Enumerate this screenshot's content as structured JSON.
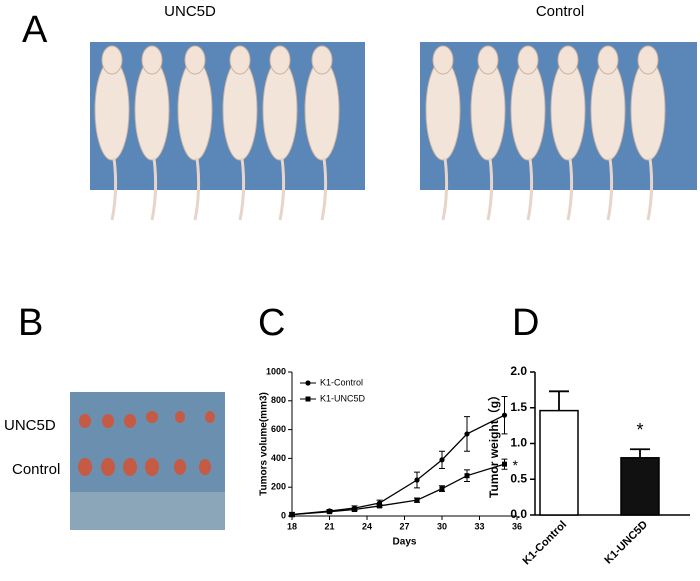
{
  "panels": {
    "a": "A",
    "b": "B",
    "c": "C",
    "d": "D"
  },
  "photo_labels": {
    "a_left": "UNC5D",
    "a_right": "Control",
    "b_top": "UNC5D",
    "b_bottom": "Control"
  },
  "chart_data": [
    {
      "type": "line",
      "x_label": "Days",
      "y_label": "Tumors volume(mm3)",
      "annotation": "*",
      "xlim": [
        18,
        36
      ],
      "xticks": [
        18,
        21,
        24,
        27,
        30,
        33,
        36
      ],
      "ylim": [
        0,
        1000
      ],
      "yticks": [
        0,
        200,
        400,
        600,
        800,
        1000
      ],
      "x": [
        18,
        21,
        23,
        25,
        28,
        30,
        32,
        35
      ],
      "series": [
        {
          "name": "K1-Control",
          "color": "#000000",
          "marker": "circle",
          "values": [
            10,
            35,
            55,
            90,
            250,
            390,
            570,
            700
          ],
          "errors": [
            15,
            10,
            15,
            20,
            55,
            60,
            120,
            130
          ]
        },
        {
          "name": "K1-UNC5D",
          "color": "#000000",
          "marker": "square",
          "values": [
            10,
            30,
            45,
            70,
            110,
            190,
            280,
            360
          ],
          "errors": [
            5,
            8,
            10,
            10,
            15,
            20,
            40,
            35
          ]
        }
      ],
      "legend": "upper-left"
    },
    {
      "type": "bar",
      "y_label": "Tumor weight（g）",
      "annotation": "*",
      "categories": [
        "K1-Control",
        "K1-UNC5D"
      ],
      "values": [
        1.46,
        0.8
      ],
      "errors": [
        0.27,
        0.12
      ],
      "colors": [
        "#ffffff",
        "#111111"
      ],
      "ylim": [
        0,
        2
      ],
      "yticks": [
        {
          "value": 0,
          "label": "0.0"
        },
        {
          "value": 0.5,
          "label": "0.5"
        },
        {
          "value": 1,
          "label": "1.0"
        },
        {
          "value": 1.5,
          "label": "1.5"
        },
        {
          "value": 2,
          "label": "2.0"
        }
      ]
    }
  ]
}
